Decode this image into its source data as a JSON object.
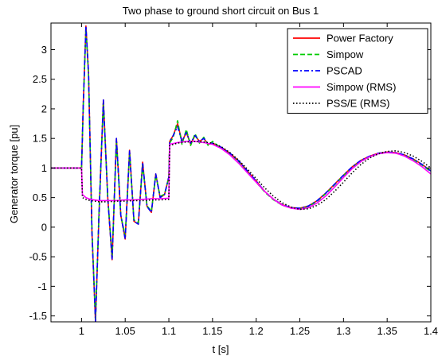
{
  "chart_data": {
    "type": "line",
    "title": "Two phase to ground short circuit on Bus 1",
    "xlabel": "t [s]",
    "ylabel": "Generator torque [pu]",
    "xlim": [
      0.965,
      1.4
    ],
    "ylim": [
      -1.6,
      3.45
    ],
    "x_ticks": [
      1,
      1.05,
      1.1,
      1.15,
      1.2,
      1.25,
      1.3,
      1.35,
      1.4
    ],
    "x_tick_labels": [
      "1",
      "1.05",
      "1.1",
      "1.15",
      "1.2",
      "1.25",
      "1.3",
      "1.35",
      "1.4"
    ],
    "y_ticks": [
      -1.5,
      -1,
      -0.5,
      0,
      0.5,
      1,
      1.5,
      2,
      2.5,
      3
    ],
    "y_tick_labels": [
      "-1.5",
      "-1",
      "-0.5",
      "0",
      "0.5",
      "1",
      "1.5",
      "2",
      "2.5",
      "3"
    ],
    "grid": false,
    "legend_position": "top-right",
    "series": [
      {
        "name": "Power Factory",
        "color": "#ff0000",
        "style": "solid",
        "x": [
          0.965,
          1.0,
          1.002,
          1.005,
          1.008,
          1.012,
          1.016,
          1.02,
          1.025,
          1.03,
          1.035,
          1.04,
          1.045,
          1.05,
          1.055,
          1.06,
          1.065,
          1.07,
          1.075,
          1.08,
          1.085,
          1.09,
          1.095,
          1.1,
          1.101,
          1.105,
          1.11,
          1.115,
          1.12,
          1.125,
          1.13,
          1.135,
          1.14,
          1.145,
          1.15,
          1.16,
          1.17,
          1.18,
          1.19,
          1.2,
          1.21,
          1.22,
          1.23,
          1.24,
          1.25,
          1.26,
          1.27,
          1.28,
          1.29,
          1.3,
          1.31,
          1.32,
          1.33,
          1.34,
          1.35,
          1.36,
          1.37,
          1.38,
          1.39,
          1.4
        ],
        "y": [
          1.0,
          1.0,
          2.1,
          3.4,
          2.6,
          -0.1,
          -1.6,
          0.2,
          2.15,
          0.5,
          -0.55,
          1.5,
          0.2,
          -0.2,
          1.3,
          0.1,
          0.05,
          1.1,
          0.35,
          0.25,
          0.9,
          0.5,
          0.55,
          0.85,
          1.45,
          1.55,
          1.75,
          1.45,
          1.6,
          1.4,
          1.55,
          1.45,
          1.5,
          1.4,
          1.42,
          1.35,
          1.25,
          1.12,
          0.95,
          0.78,
          0.6,
          0.47,
          0.38,
          0.33,
          0.32,
          0.36,
          0.45,
          0.58,
          0.73,
          0.88,
          1.02,
          1.13,
          1.2,
          1.25,
          1.27,
          1.26,
          1.22,
          1.15,
          1.06,
          0.95
        ]
      },
      {
        "name": "Simpow",
        "color": "#00cc00",
        "style": "dashed",
        "x": [
          0.965,
          1.0,
          1.002,
          1.005,
          1.008,
          1.012,
          1.016,
          1.02,
          1.025,
          1.03,
          1.035,
          1.04,
          1.045,
          1.05,
          1.055,
          1.06,
          1.065,
          1.07,
          1.075,
          1.08,
          1.085,
          1.09,
          1.095,
          1.1,
          1.101,
          1.105,
          1.11,
          1.115,
          1.12,
          1.125,
          1.13,
          1.135,
          1.14,
          1.145,
          1.15,
          1.16,
          1.17,
          1.18,
          1.19,
          1.2,
          1.21,
          1.22,
          1.23,
          1.24,
          1.25,
          1.26,
          1.27,
          1.28,
          1.29,
          1.3,
          1.31,
          1.32,
          1.33,
          1.34,
          1.35,
          1.36,
          1.37,
          1.38,
          1.39,
          1.4
        ],
        "y": [
          1.0,
          1.0,
          2.05,
          3.35,
          2.55,
          -0.05,
          -1.55,
          0.25,
          2.1,
          0.5,
          -0.5,
          1.45,
          0.2,
          -0.15,
          1.25,
          0.12,
          0.08,
          1.05,
          0.36,
          0.27,
          0.88,
          0.52,
          0.56,
          0.84,
          1.42,
          1.52,
          1.8,
          1.4,
          1.65,
          1.38,
          1.58,
          1.42,
          1.52,
          1.38,
          1.45,
          1.33,
          1.23,
          1.1,
          0.93,
          0.76,
          0.59,
          0.46,
          0.37,
          0.32,
          0.31,
          0.35,
          0.44,
          0.57,
          0.72,
          0.87,
          1.01,
          1.12,
          1.19,
          1.24,
          1.26,
          1.25,
          1.21,
          1.14,
          1.05,
          0.94
        ]
      },
      {
        "name": "PSCAD",
        "color": "#0000ff",
        "style": "dashdot",
        "x": [
          0.965,
          1.0,
          1.002,
          1.005,
          1.008,
          1.012,
          1.016,
          1.02,
          1.025,
          1.03,
          1.035,
          1.04,
          1.045,
          1.05,
          1.055,
          1.06,
          1.065,
          1.07,
          1.075,
          1.08,
          1.085,
          1.09,
          1.095,
          1.1,
          1.101,
          1.105,
          1.11,
          1.115,
          1.12,
          1.125,
          1.13,
          1.135,
          1.14,
          1.145,
          1.15,
          1.16,
          1.17,
          1.18,
          1.19,
          1.2,
          1.21,
          1.22,
          1.23,
          1.24,
          1.25,
          1.26,
          1.27,
          1.28,
          1.29,
          1.3,
          1.31,
          1.32,
          1.33,
          1.34,
          1.35,
          1.36,
          1.37,
          1.38,
          1.39,
          1.4
        ],
        "y": [
          1.0,
          1.0,
          2.1,
          3.4,
          2.6,
          -0.1,
          -1.6,
          0.2,
          2.15,
          0.5,
          -0.55,
          1.5,
          0.2,
          -0.2,
          1.3,
          0.1,
          0.05,
          1.1,
          0.35,
          0.25,
          0.9,
          0.5,
          0.55,
          0.85,
          1.45,
          1.55,
          1.7,
          1.45,
          1.6,
          1.42,
          1.55,
          1.45,
          1.5,
          1.4,
          1.42,
          1.35,
          1.25,
          1.12,
          0.95,
          0.78,
          0.6,
          0.47,
          0.38,
          0.33,
          0.32,
          0.36,
          0.45,
          0.58,
          0.73,
          0.88,
          1.02,
          1.13,
          1.2,
          1.25,
          1.27,
          1.26,
          1.22,
          1.15,
          1.06,
          0.95
        ]
      },
      {
        "name": "Simpow (RMS)",
        "color": "#ff00ff",
        "style": "solid",
        "x": [
          0.965,
          1.0,
          1.001,
          1.005,
          1.01,
          1.02,
          1.03,
          1.04,
          1.05,
          1.06,
          1.07,
          1.08,
          1.09,
          1.1,
          1.101,
          1.11,
          1.12,
          1.13,
          1.14,
          1.15,
          1.16,
          1.17,
          1.18,
          1.19,
          1.2,
          1.21,
          1.22,
          1.23,
          1.24,
          1.25,
          1.26,
          1.27,
          1.28,
          1.29,
          1.3,
          1.31,
          1.32,
          1.33,
          1.34,
          1.35,
          1.36,
          1.37,
          1.38,
          1.39,
          1.4
        ],
        "y": [
          1.0,
          1.0,
          0.55,
          0.5,
          0.47,
          0.45,
          0.45,
          0.45,
          0.46,
          0.46,
          0.47,
          0.48,
          0.48,
          0.49,
          1.4,
          1.43,
          1.45,
          1.45,
          1.43,
          1.4,
          1.33,
          1.22,
          1.08,
          0.92,
          0.76,
          0.6,
          0.47,
          0.37,
          0.32,
          0.3,
          0.33,
          0.41,
          0.53,
          0.68,
          0.84,
          0.99,
          1.11,
          1.19,
          1.24,
          1.26,
          1.25,
          1.2,
          1.12,
          1.02,
          0.9
        ]
      },
      {
        "name": "PSS/E (RMS)",
        "color": "#000000",
        "style": "dotted",
        "x": [
          0.965,
          1.0,
          1.001,
          1.005,
          1.01,
          1.02,
          1.03,
          1.04,
          1.05,
          1.06,
          1.07,
          1.08,
          1.09,
          1.1,
          1.101,
          1.11,
          1.12,
          1.13,
          1.14,
          1.15,
          1.16,
          1.17,
          1.18,
          1.19,
          1.2,
          1.21,
          1.22,
          1.23,
          1.24,
          1.25,
          1.26,
          1.27,
          1.28,
          1.29,
          1.3,
          1.31,
          1.32,
          1.33,
          1.34,
          1.35,
          1.36,
          1.37,
          1.38,
          1.39,
          1.4
        ],
        "y": [
          1.0,
          1.0,
          0.5,
          0.47,
          0.45,
          0.43,
          0.43,
          0.44,
          0.44,
          0.45,
          0.45,
          0.46,
          0.46,
          0.47,
          1.38,
          1.42,
          1.44,
          1.45,
          1.44,
          1.42,
          1.36,
          1.26,
          1.13,
          0.98,
          0.82,
          0.66,
          0.52,
          0.41,
          0.34,
          0.3,
          0.31,
          0.37,
          0.47,
          0.61,
          0.76,
          0.92,
          1.06,
          1.17,
          1.24,
          1.28,
          1.29,
          1.26,
          1.2,
          1.11,
          1.0
        ]
      }
    ]
  }
}
